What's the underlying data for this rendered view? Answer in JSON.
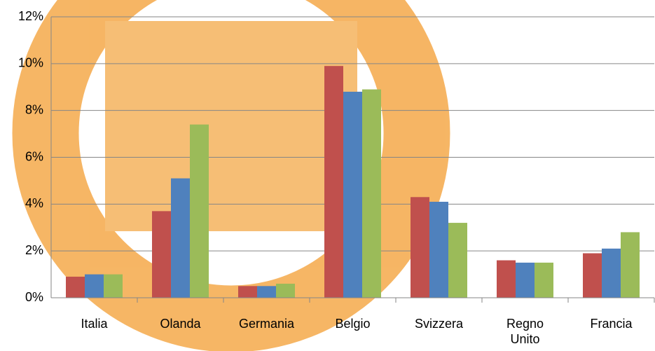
{
  "chart_data": {
    "type": "bar",
    "categories": [
      "Italia",
      "Olanda",
      "Germania",
      "Belgio",
      "Svizzera",
      "Regno Unito",
      "Francia"
    ],
    "series": [
      {
        "color": "#c0504d",
        "values": [
          0.9,
          3.7,
          0.5,
          9.9,
          4.3,
          1.6,
          1.9
        ]
      },
      {
        "color": "#4f81bd",
        "values": [
          1.0,
          5.1,
          0.5,
          8.8,
          4.1,
          1.5,
          2.1
        ]
      },
      {
        "color": "#9bbb59",
        "values": [
          1.0,
          7.4,
          0.6,
          8.9,
          3.2,
          1.5,
          2.8
        ]
      }
    ],
    "ylim": [
      0,
      12
    ],
    "yticks": [
      {
        "value": 0,
        "label": "0%"
      },
      {
        "value": 2,
        "label": "2%"
      },
      {
        "value": 4,
        "label": "4%"
      },
      {
        "value": 6,
        "label": "6%"
      },
      {
        "value": 8,
        "label": "8%"
      },
      {
        "value": 10,
        "label": "10%"
      },
      {
        "value": 12,
        "label": "12%"
      }
    ],
    "grid": true
  }
}
